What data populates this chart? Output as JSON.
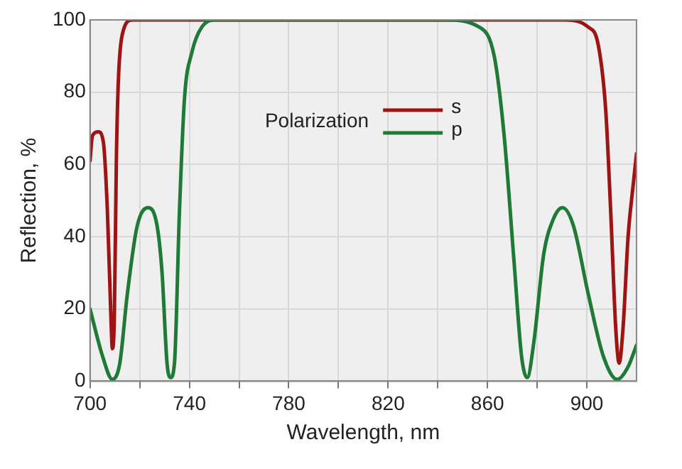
{
  "chart_data": {
    "type": "line",
    "xlabel": "Wavelength, nm",
    "ylabel": "Reflection, %",
    "legend_title": "Polarization",
    "xlim": [
      700,
      920
    ],
    "ylim": [
      0,
      100
    ],
    "xticks": [
      700,
      {
        "value": 720,
        "label": null
      },
      740,
      {
        "value": 760,
        "label": null
      },
      780,
      {
        "value": 800,
        "label": null
      },
      820,
      {
        "value": 840,
        "label": null
      },
      860,
      {
        "value": 880,
        "label": null
      },
      900
    ],
    "yticks": [
      0,
      20,
      40,
      60,
      80,
      100
    ],
    "grid": true,
    "legend": "top",
    "marker": "none",
    "line_style": "solid",
    "series": [
      {
        "name": "s",
        "color": "#9e1414",
        "x": [
          700,
          701,
          703.4,
          705.4,
          707,
          708.4,
          709,
          709.8,
          710.6,
          711.4,
          713,
          717,
          760,
          820,
          890.6,
          900.6,
          904.6,
          907.6,
          909.6,
          911.6,
          913,
          914.6,
          916.6,
          918.6,
          920
        ],
        "values": [
          61,
          68,
          69,
          66,
          47,
          18,
          9,
          18,
          61,
          83,
          96,
          100,
          100,
          100,
          100,
          98,
          93,
          75,
          47,
          15,
          5,
          15,
          40,
          54,
          63
        ]
      },
      {
        "name": "p",
        "color": "#1f7a38",
        "x": [
          700,
          705,
          709,
          712,
          715,
          719,
          723.4,
          727,
          729,
          731,
          732.4,
          734,
          736,
          738,
          741,
          745,
          751,
          800,
          842.7,
          856.7,
          862.7,
          866.7,
          870.7,
          873.7,
          876,
          878.7,
          882.6,
          886.6,
          890.2,
          894.6,
          900.6,
          906.6,
          912.2,
          916.6,
          920
        ],
        "values": [
          20,
          7,
          0.5,
          5,
          24,
          43,
          48,
          43,
          30,
          5,
          1,
          5,
          47,
          78,
          91,
          98,
          100,
          100,
          100,
          98,
          90,
          68,
          33,
          7,
          1,
          11,
          35,
          45,
          48,
          43,
          24,
          7,
          0.5,
          4,
          10
        ]
      }
    ]
  }
}
